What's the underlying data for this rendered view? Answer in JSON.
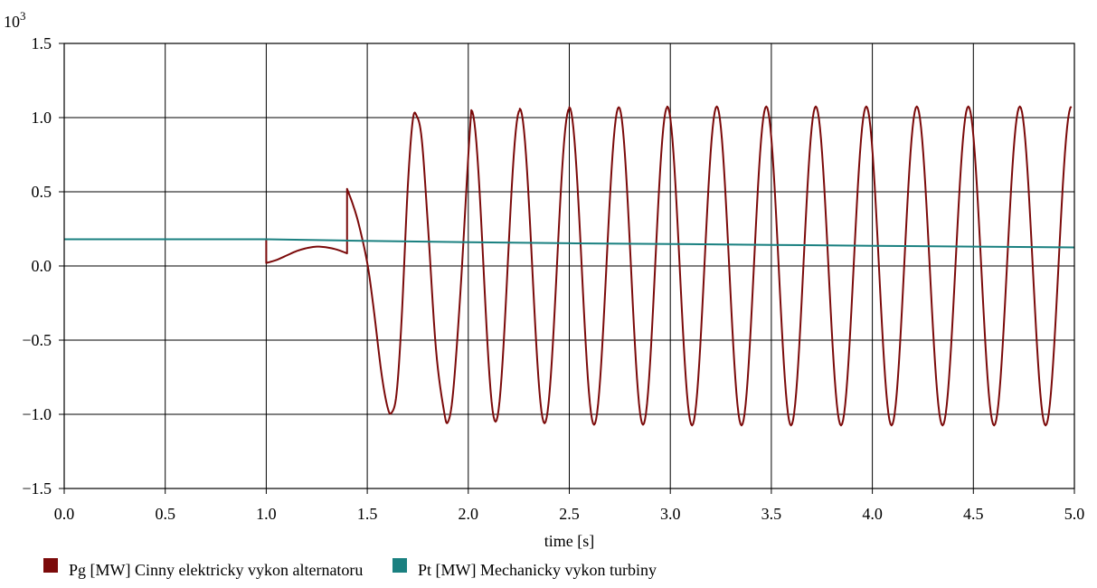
{
  "chart_data": {
    "type": "line",
    "title": "",
    "xlabel": "time [s]",
    "ylabel": "",
    "y_multiplier": {
      "base": "10",
      "exponent": "3"
    },
    "xlim": [
      0.0,
      5.0
    ],
    "ylim": [
      -1.5,
      1.5
    ],
    "x_ticks": [
      0.0,
      0.5,
      1.0,
      1.5,
      2.0,
      2.5,
      3.0,
      3.5,
      4.0,
      4.5,
      5.0
    ],
    "x_tick_labels": [
      "0.0",
      "0.5",
      "1.0",
      "1.5",
      "2.0",
      "2.5",
      "3.0",
      "3.5",
      "4.0",
      "4.5",
      "5.0"
    ],
    "y_ticks": [
      -1.5,
      -1.0,
      -0.5,
      0.0,
      0.5,
      1.0,
      1.5
    ],
    "y_tick_labels": [
      "−1.5",
      "−1.0",
      "−0.5",
      "0.0",
      "0.5",
      "1.0",
      "1.5"
    ],
    "grid": true,
    "legend_position": "bottom-left",
    "series": [
      {
        "name": "Pg [MW] Cinny elektricky vykon alternatoru",
        "color": "#7b0a0a",
        "points": [
          [
            0.0,
            0.18
          ],
          [
            1.0,
            0.18
          ],
          [
            1.0,
            0.02
          ],
          [
            1.05,
            0.04
          ],
          [
            1.1,
            0.07
          ],
          [
            1.15,
            0.1
          ],
          [
            1.2,
            0.12
          ],
          [
            1.25,
            0.13
          ],
          [
            1.3,
            0.125
          ],
          [
            1.35,
            0.11
          ],
          [
            1.4,
            0.085
          ],
          [
            1.4,
            0.52
          ],
          [
            1.43,
            0.41
          ],
          [
            1.46,
            0.27
          ],
          [
            1.5,
            0.02
          ],
          [
            1.53,
            -0.27
          ],
          [
            1.57,
            -0.72
          ],
          [
            1.6,
            -0.95
          ],
          [
            1.62,
            -0.99
          ],
          [
            1.645,
            -0.86
          ],
          [
            1.67,
            -0.36
          ],
          [
            1.7,
            0.52
          ],
          [
            1.725,
            0.98
          ],
          [
            1.745,
            1.01
          ],
          [
            1.77,
            0.85
          ],
          [
            1.8,
            0.28
          ],
          [
            1.84,
            -0.56
          ],
          [
            1.88,
            -0.98
          ],
          [
            1.9,
            -1.05
          ],
          [
            1.925,
            -0.85
          ],
          [
            1.96,
            -0.2
          ],
          [
            2.0,
            0.74
          ],
          [
            2.015,
            1.05
          ],
          [
            2.255,
            1.06
          ],
          [
            2.5,
            1.07
          ],
          [
            2.745,
            1.07
          ],
          [
            2.985,
            1.075
          ],
          [
            3.23,
            1.075
          ],
          [
            3.475,
            1.075
          ],
          [
            3.72,
            1.075
          ],
          [
            3.97,
            1.075
          ],
          [
            4.22,
            1.075
          ],
          [
            4.475,
            1.075
          ],
          [
            4.73,
            1.075
          ]
        ]
      },
      {
        "name": "Pt [MW] Mechanicky vykon turbiny",
        "color": "#1a8080",
        "points": [
          [
            0.0,
            0.18
          ],
          [
            1.0,
            0.18
          ],
          [
            1.4,
            0.171
          ],
          [
            2.0,
            0.16
          ],
          [
            2.5,
            0.153
          ],
          [
            3.0,
            0.148
          ],
          [
            3.5,
            0.142
          ],
          [
            4.0,
            0.136
          ],
          [
            4.5,
            0.13
          ],
          [
            5.0,
            0.125
          ]
        ]
      }
    ]
  }
}
